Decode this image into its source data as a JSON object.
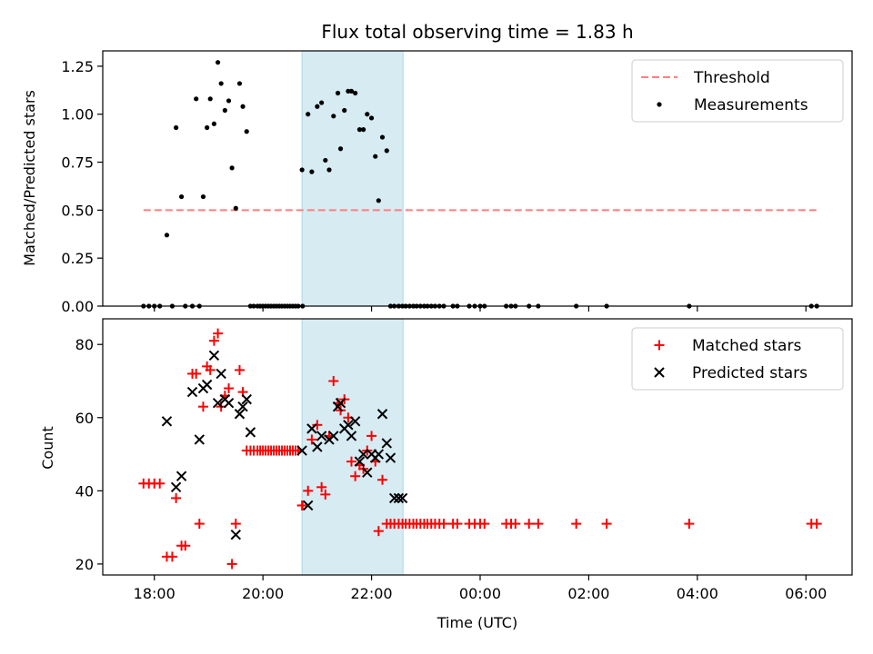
{
  "chart_data": [
    {
      "type": "scatter",
      "title": "Flux total observing time = 1.83 h",
      "ylabel": "Matched/Predicted stars",
      "xlabel": "",
      "xlim_hours": [
        17.05,
        30.85
      ],
      "ylim": [
        0,
        1.33
      ],
      "yticks": [
        0.0,
        0.25,
        0.5,
        0.75,
        1.0,
        1.25
      ],
      "ytick_labels": [
        "0.00",
        "0.25",
        "0.50",
        "0.75",
        "1.00",
        "1.25"
      ],
      "xtick_hours": [
        18,
        20,
        22,
        24,
        26,
        28,
        30
      ],
      "shaded_interval_hours": [
        20.72,
        22.58
      ],
      "threshold": {
        "name": "Threshold",
        "y": 0.5,
        "x_range_hours": [
          17.8,
          30.2
        ],
        "color": "#ff7f7f"
      },
      "legend": {
        "position": "upper-right",
        "entries": [
          "Threshold",
          "Measurements"
        ]
      },
      "series": [
        {
          "name": "Measurements",
          "color": "#000000",
          "x": [
            17.8,
            17.9,
            18.0,
            18.1,
            18.23,
            18.33,
            18.4,
            18.5,
            18.57,
            18.7,
            18.77,
            18.83,
            18.9,
            18.97,
            19.03,
            19.1,
            19.17,
            19.23,
            19.3,
            19.37,
            19.43,
            19.5,
            19.57,
            19.63,
            19.7,
            19.77,
            19.83,
            19.9,
            19.95,
            20.0,
            20.05,
            20.1,
            20.15,
            20.2,
            20.25,
            20.3,
            20.35,
            20.4,
            20.45,
            20.5,
            20.55,
            20.6,
            20.65,
            20.72,
            20.73,
            20.83,
            20.9,
            21.0,
            21.08,
            21.15,
            21.22,
            21.3,
            21.38,
            21.43,
            21.5,
            21.57,
            21.63,
            21.7,
            21.78,
            21.85,
            21.92,
            22.0,
            22.07,
            22.13,
            22.2,
            22.28,
            22.35,
            22.42,
            22.5,
            22.57,
            22.63,
            22.7,
            22.77,
            22.83,
            22.9,
            22.97,
            23.03,
            23.1,
            23.17,
            23.25,
            23.33,
            23.5,
            23.58,
            23.8,
            23.9,
            24.0,
            24.08,
            24.48,
            24.57,
            24.65,
            24.9,
            25.07,
            25.77,
            26.33,
            27.85,
            30.1,
            30.2
          ],
          "y": [
            0,
            0,
            0,
            0,
            0.37,
            0,
            0.93,
            0.57,
            0,
            0,
            1.08,
            0,
            0.57,
            0.93,
            1.08,
            0.95,
            1.27,
            1.16,
            1.02,
            1.07,
            0.72,
            0.51,
            1.16,
            1.04,
            0.91,
            0,
            0,
            0,
            0,
            0,
            0,
            0,
            0,
            0,
            0,
            0,
            0,
            0,
            0,
            0,
            0,
            0,
            0,
            0.71,
            0,
            1.0,
            0.7,
            1.04,
            1.06,
            0.76,
            0.71,
            0.99,
            1.11,
            0.82,
            1.02,
            1.12,
            1.12,
            1.11,
            0.92,
            0.92,
            1.0,
            0.98,
            0.78,
            0.55,
            0.88,
            0.81,
            0,
            0,
            0,
            0,
            0,
            0,
            0,
            0,
            0,
            0,
            0,
            0,
            0,
            0,
            0,
            0,
            0,
            0,
            0,
            0,
            0,
            0,
            0,
            0,
            0,
            0,
            0,
            0,
            0,
            0,
            0
          ]
        }
      ]
    },
    {
      "type": "scatter",
      "title": "",
      "ylabel": "Count",
      "xlabel": "Time (UTC)",
      "xlim_hours": [
        17.05,
        30.85
      ],
      "ylim": [
        17,
        87
      ],
      "yticks": [
        20,
        40,
        60,
        80
      ],
      "ytick_labels": [
        "20",
        "40",
        "60",
        "80"
      ],
      "xtick_hours": [
        18,
        20,
        22,
        24,
        26,
        28,
        30
      ],
      "xtick_labels": [
        "18:00",
        "20:00",
        "22:00",
        "00:00",
        "02:00",
        "04:00",
        "06:00"
      ],
      "shaded_interval_hours": [
        20.72,
        22.58
      ],
      "legend": {
        "position": "upper-right",
        "entries": [
          "Matched stars",
          "Predicted stars"
        ]
      },
      "series": [
        {
          "name": "Matched stars",
          "marker": "plus",
          "color": "#ff0000",
          "x": [
            17.8,
            17.9,
            18.0,
            18.1,
            18.23,
            18.33,
            18.4,
            18.5,
            18.57,
            18.7,
            18.77,
            18.83,
            18.9,
            18.97,
            19.03,
            19.1,
            19.17,
            19.23,
            19.3,
            19.37,
            19.43,
            19.5,
            19.57,
            19.63,
            19.7,
            19.77,
            19.83,
            19.9,
            19.95,
            20.0,
            20.05,
            20.1,
            20.15,
            20.2,
            20.25,
            20.3,
            20.35,
            20.4,
            20.45,
            20.5,
            20.55,
            20.6,
            20.65,
            20.72,
            20.73,
            20.83,
            20.9,
            21.0,
            21.08,
            21.15,
            21.22,
            21.3,
            21.38,
            21.43,
            21.5,
            21.57,
            21.63,
            21.7,
            21.78,
            21.85,
            21.92,
            22.0,
            22.07,
            22.13,
            22.2,
            22.28,
            22.35,
            22.42,
            22.5,
            22.57,
            22.63,
            22.7,
            22.77,
            22.83,
            22.9,
            22.97,
            23.03,
            23.1,
            23.17,
            23.25,
            23.33,
            23.5,
            23.58,
            23.8,
            23.9,
            24.0,
            24.08,
            24.48,
            24.57,
            24.65,
            24.9,
            25.07,
            25.77,
            26.33,
            27.85,
            30.1,
            30.2
          ],
          "y": [
            42,
            42,
            42,
            42,
            22,
            22,
            38,
            25,
            25,
            72,
            72,
            31,
            63,
            74,
            73,
            81,
            83,
            63,
            66,
            68,
            20,
            31,
            73,
            67,
            51,
            51,
            51,
            51,
            51,
            51,
            51,
            51,
            51,
            51,
            51,
            51,
            51,
            51,
            51,
            51,
            51,
            51,
            51,
            36,
            36,
            40,
            54,
            58,
            41,
            39,
            55,
            70,
            64,
            62,
            65,
            60,
            48,
            44,
            47,
            46,
            51,
            55,
            48,
            29,
            43,
            31,
            31,
            31,
            31,
            31,
            31,
            31,
            31,
            31,
            31,
            31,
            31,
            31,
            31,
            31,
            31,
            31,
            31,
            31,
            31,
            31,
            31,
            31,
            31,
            31,
            31,
            31,
            31,
            31,
            31,
            31,
            31
          ]
        },
        {
          "name": "Predicted stars",
          "marker": "x",
          "color": "#000000",
          "x": [
            18.23,
            18.4,
            18.5,
            18.7,
            18.83,
            18.9,
            18.97,
            19.1,
            19.17,
            19.23,
            19.3,
            19.37,
            19.5,
            19.57,
            19.63,
            19.7,
            19.77,
            20.72,
            20.83,
            20.9,
            21.0,
            21.08,
            21.22,
            21.3,
            21.38,
            21.43,
            21.5,
            21.57,
            21.63,
            21.7,
            21.78,
            21.85,
            21.92,
            22.0,
            22.07,
            22.13,
            22.2,
            22.28,
            22.35,
            22.42,
            22.5,
            22.57
          ],
          "y": [
            59,
            41,
            44,
            67,
            54,
            68,
            69,
            77,
            64,
            72,
            65,
            64,
            28,
            61,
            63,
            65,
            56,
            51,
            36,
            57,
            52,
            55,
            54,
            55,
            63,
            64,
            57,
            58,
            55,
            59,
            48,
            50,
            45,
            50,
            49,
            50,
            61,
            53,
            49,
            38,
            38,
            38
          ]
        }
      ]
    }
  ]
}
